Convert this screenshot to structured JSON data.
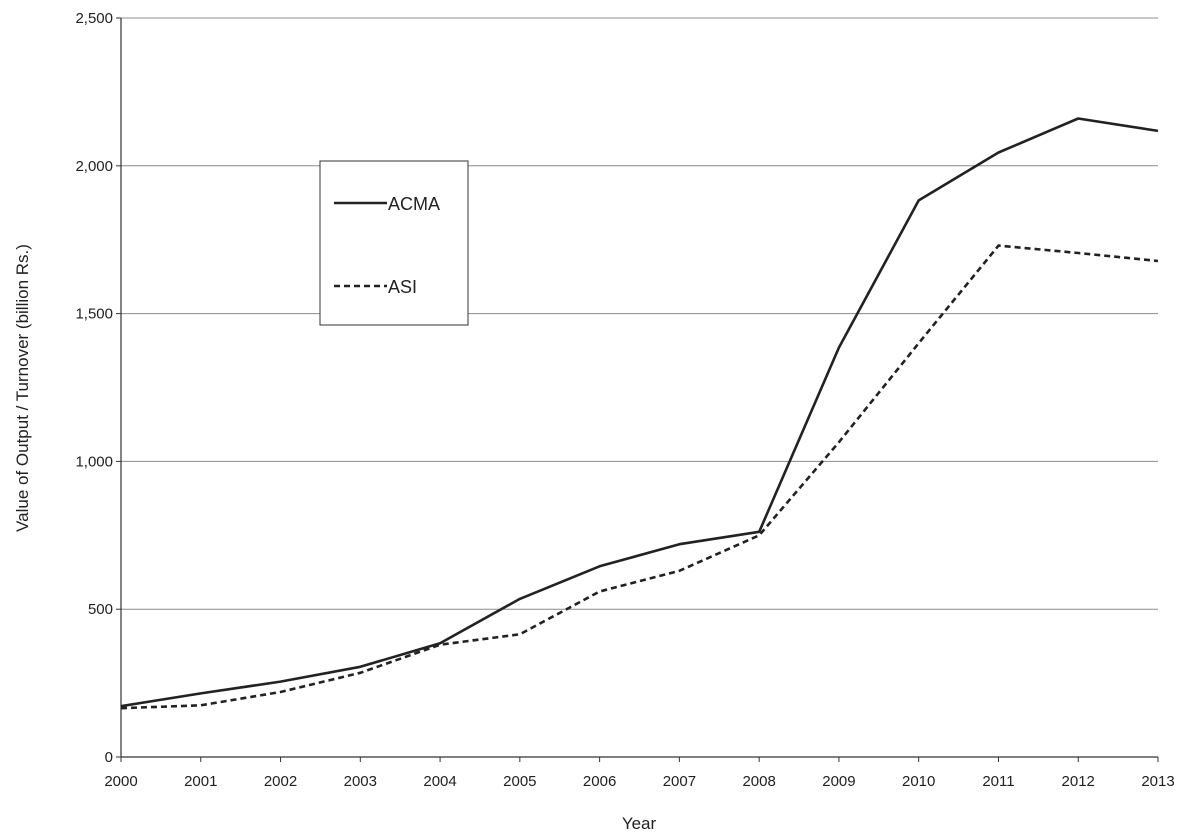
{
  "chart_data": {
    "type": "line",
    "title": "",
    "xlabel": "Year",
    "ylabel": "Value of Output / Turnover (billion Rs.)",
    "x": [
      "2000",
      "2001",
      "2002",
      "2003",
      "2004",
      "2005",
      "2006",
      "2007",
      "2008",
      "2009",
      "2010",
      "2011",
      "2012",
      "2013"
    ],
    "ylim": [
      0,
      2500
    ],
    "yticks": [
      0,
      500,
      1000,
      1500,
      2000,
      2500
    ],
    "ytick_labels": [
      "0",
      "500",
      "1,000",
      "1,500",
      "2,000",
      "2,500"
    ],
    "grid": "horizontal",
    "legend_position": "upper-left",
    "series": [
      {
        "name": "ACMA",
        "style": "solid",
        "color": "#222222",
        "values": [
          172,
          215,
          255,
          305,
          385,
          535,
          645,
          720,
          762,
          1385,
          1883,
          2045,
          2160,
          2118
        ]
      },
      {
        "name": "ASI",
        "style": "dashed",
        "color": "#222222",
        "values": [
          165,
          175,
          220,
          285,
          380,
          415,
          560,
          630,
          750,
          1065,
          1400,
          1730,
          1705,
          1678
        ]
      }
    ]
  }
}
